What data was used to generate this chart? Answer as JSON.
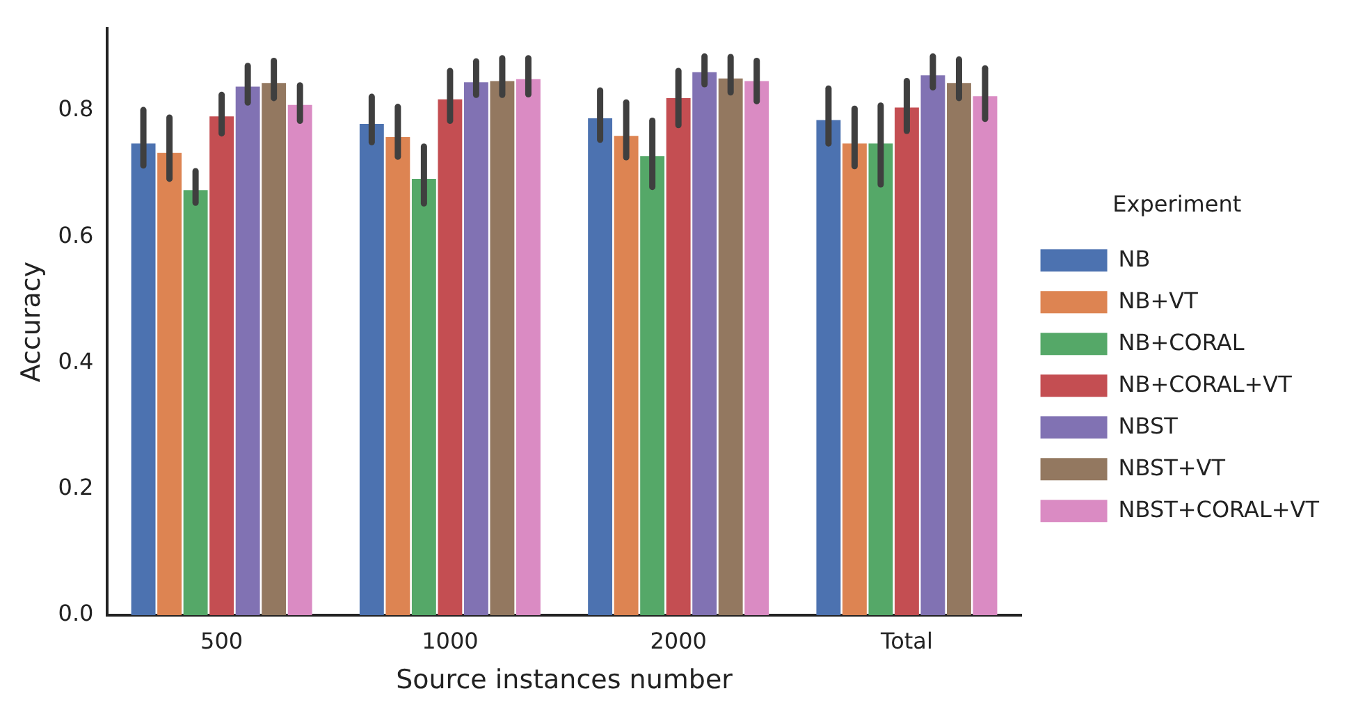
{
  "chart_data": {
    "type": "bar",
    "xlabel": "Source instances number",
    "ylabel": "Accuracy",
    "legend_title": "Experiment",
    "legend": "right",
    "grid": false,
    "categories": [
      "500",
      "1000",
      "2000",
      "Total"
    ],
    "ylim": [
      0,
      0.93
    ],
    "yticks": [
      {
        "value": 0,
        "label": "0.0"
      },
      0.2,
      0.4,
      0.6,
      0.8
    ],
    "series": [
      {
        "name": "NB",
        "color": "#4c72b0",
        "values": [
          0.748,
          0.779,
          0.788,
          0.785
        ],
        "errors": [
          [
            0.713,
            0.801
          ],
          [
            0.75,
            0.822
          ],
          [
            0.754,
            0.832
          ],
          [
            0.748,
            0.835
          ]
        ]
      },
      {
        "name": "NB+VT",
        "color": "#dd8452",
        "values": [
          0.733,
          0.758,
          0.76,
          0.748
        ],
        "errors": [
          [
            0.692,
            0.789
          ],
          [
            0.727,
            0.806
          ],
          [
            0.726,
            0.813
          ],
          [
            0.712,
            0.803
          ]
        ]
      },
      {
        "name": "NB+CORAL",
        "color": "#55a868",
        "values": [
          0.674,
          0.692,
          0.728,
          0.748
        ],
        "errors": [
          [
            0.654,
            0.704
          ],
          [
            0.653,
            0.743
          ],
          [
            0.679,
            0.784
          ],
          [
            0.683,
            0.808
          ]
        ]
      },
      {
        "name": "NB+CORAL+VT",
        "color": "#c44e52",
        "values": [
          0.791,
          0.818,
          0.82,
          0.805
        ],
        "errors": [
          [
            0.764,
            0.825
          ],
          [
            0.784,
            0.863
          ],
          [
            0.777,
            0.863
          ],
          [
            0.768,
            0.847
          ]
        ]
      },
      {
        "name": "NBST",
        "color": "#8172b3",
        "values": [
          0.838,
          0.845,
          0.861,
          0.856
        ],
        "errors": [
          [
            0.813,
            0.871
          ],
          [
            0.825,
            0.878
          ],
          [
            0.842,
            0.886
          ],
          [
            0.837,
            0.886
          ]
        ]
      },
      {
        "name": "NBST+VT",
        "color": "#937860",
        "values": [
          0.844,
          0.847,
          0.851,
          0.844
        ],
        "errors": [
          [
            0.82,
            0.879
          ],
          [
            0.825,
            0.883
          ],
          [
            0.829,
            0.885
          ],
          [
            0.82,
            0.881
          ]
        ]
      },
      {
        "name": "NBST+CORAL+VT",
        "color": "#da8bc3",
        "values": [
          0.809,
          0.85,
          0.847,
          0.823
        ],
        "errors": [
          [
            0.784,
            0.84
          ],
          [
            0.826,
            0.883
          ],
          [
            0.815,
            0.879
          ],
          [
            0.787,
            0.867
          ]
        ]
      }
    ]
  }
}
